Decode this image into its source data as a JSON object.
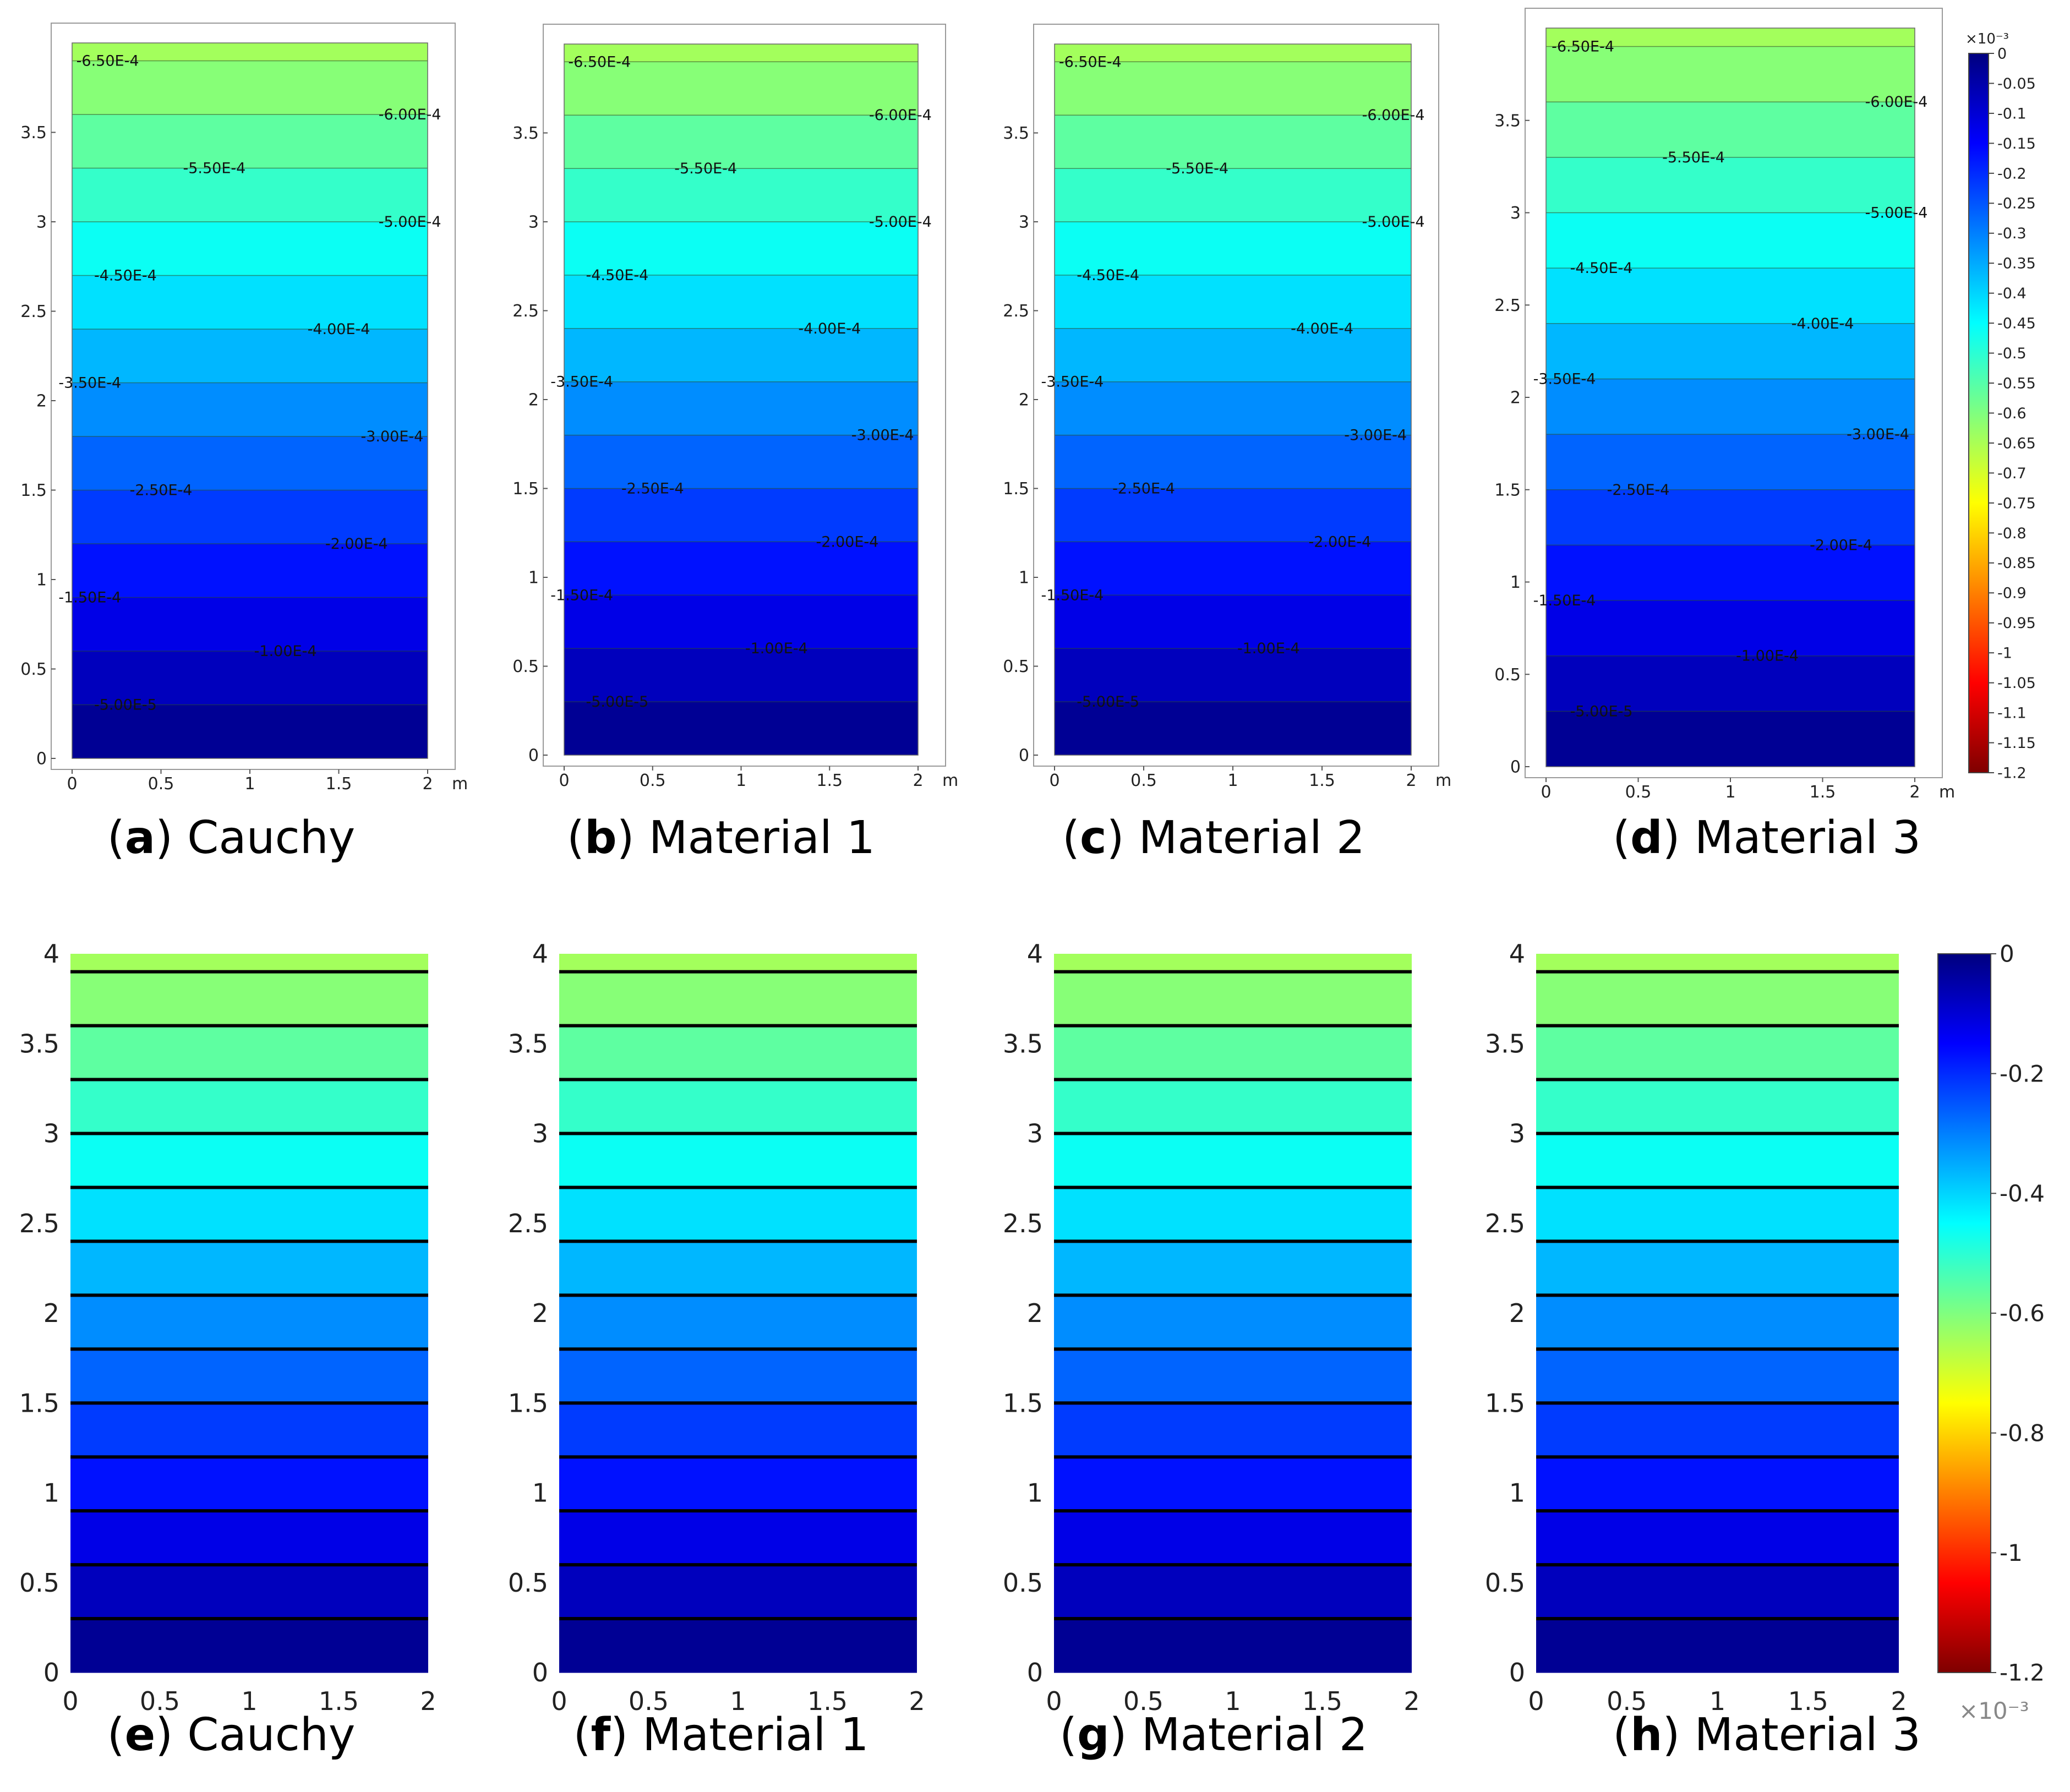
{
  "colormap": [
    "#7f0000",
    "#ff0000",
    "#ff7f00",
    "#ffff00",
    "#7fff7f",
    "#00ffff",
    "#007fff",
    "#0000ff",
    "#00007f"
  ],
  "chart_data": [
    {
      "id": "a",
      "type": "heatmap",
      "style": "comsol",
      "caption_letter": "a",
      "caption_text": ") Cauchy",
      "xticks": [
        "0",
        "0.5",
        "1",
        "1.5",
        "2"
      ],
      "yticks": [
        "0",
        "0.5",
        "1",
        "1.5",
        "2",
        "2.5",
        "3",
        "3.5"
      ],
      "unit": "m",
      "xlim": [
        0,
        2
      ],
      "ylim": [
        0,
        4
      ],
      "field_min": -0.00065,
      "field_max": 0,
      "contour_levels": [
        0.3,
        0.6,
        0.9,
        1.2,
        1.5,
        1.8,
        2.1,
        2.4,
        2.7,
        3.0,
        3.3,
        3.6,
        3.9
      ],
      "contour_labels": [
        {
          "text": "-6.50E-4",
          "x": 0.2,
          "y": 3.9
        },
        {
          "text": "-6.00E-4",
          "x": 1.9,
          "y": 3.6
        },
        {
          "text": "-5.50E-4",
          "x": 0.8,
          "y": 3.3
        },
        {
          "text": "-5.00E-4",
          "x": 1.9,
          "y": 3.0
        },
        {
          "text": "-4.50E-4",
          "x": 0.3,
          "y": 2.7
        },
        {
          "text": "-4.00E-4",
          "x": 1.5,
          "y": 2.4
        },
        {
          "text": "-3.50E-4",
          "x": 0.1,
          "y": 2.1
        },
        {
          "text": "-3.00E-4",
          "x": 1.8,
          "y": 1.8
        },
        {
          "text": "-2.50E-4",
          "x": 0.5,
          "y": 1.5
        },
        {
          "text": "-2.00E-4",
          "x": 1.6,
          "y": 1.2
        },
        {
          "text": "-1.50E-4",
          "x": 0.1,
          "y": 0.9
        },
        {
          "text": "-1.00E-4",
          "x": 1.2,
          "y": 0.6
        },
        {
          "text": "-5.00E-5",
          "x": 0.3,
          "y": 0.3
        }
      ]
    },
    {
      "id": "b",
      "type": "heatmap",
      "style": "comsol",
      "caption_letter": "b",
      "caption_text": ") Material 1",
      "xticks": [
        "0",
        "0.5",
        "1",
        "1.5",
        "2"
      ],
      "yticks": [
        "0",
        "0.5",
        "1",
        "1.5",
        "2",
        "2.5",
        "3",
        "3.5"
      ],
      "unit": "m",
      "xlim": [
        0,
        2
      ],
      "ylim": [
        0,
        4
      ],
      "field_min": -0.00065,
      "field_max": 0,
      "contour_levels": [
        0.3,
        0.6,
        0.9,
        1.2,
        1.5,
        1.8,
        2.1,
        2.4,
        2.7,
        3.0,
        3.3,
        3.6,
        3.9
      ],
      "contour_labels": [
        {
          "text": "-6.50E-4",
          "x": 0.2,
          "y": 3.9
        },
        {
          "text": "-6.00E-4",
          "x": 1.9,
          "y": 3.6
        },
        {
          "text": "-5.50E-4",
          "x": 0.8,
          "y": 3.3
        },
        {
          "text": "-5.00E-4",
          "x": 1.9,
          "y": 3.0
        },
        {
          "text": "-4.50E-4",
          "x": 0.3,
          "y": 2.7
        },
        {
          "text": "-4.00E-4",
          "x": 1.5,
          "y": 2.4
        },
        {
          "text": "-3.50E-4",
          "x": 0.1,
          "y": 2.1
        },
        {
          "text": "-3.00E-4",
          "x": 1.8,
          "y": 1.8
        },
        {
          "text": "-2.50E-4",
          "x": 0.5,
          "y": 1.5
        },
        {
          "text": "-2.00E-4",
          "x": 1.6,
          "y": 1.2
        },
        {
          "text": "-1.50E-4",
          "x": 0.1,
          "y": 0.9
        },
        {
          "text": "-1.00E-4",
          "x": 1.2,
          "y": 0.6
        },
        {
          "text": "-5.00E-5",
          "x": 0.3,
          "y": 0.3
        }
      ]
    },
    {
      "id": "c",
      "type": "heatmap",
      "style": "comsol",
      "caption_letter": "c",
      "caption_text": ") Material 2",
      "xticks": [
        "0",
        "0.5",
        "1",
        "1.5",
        "2"
      ],
      "yticks": [
        "0",
        "0.5",
        "1",
        "1.5",
        "2",
        "2.5",
        "3",
        "3.5"
      ],
      "unit": "m",
      "xlim": [
        0,
        2
      ],
      "ylim": [
        0,
        4
      ],
      "field_min": -0.00065,
      "field_max": 0,
      "contour_levels": [
        0.3,
        0.6,
        0.9,
        1.2,
        1.5,
        1.8,
        2.1,
        2.4,
        2.7,
        3.0,
        3.3,
        3.6,
        3.9
      ],
      "contour_labels": [
        {
          "text": "-6.50E-4",
          "x": 0.2,
          "y": 3.9
        },
        {
          "text": "-6.00E-4",
          "x": 1.9,
          "y": 3.6
        },
        {
          "text": "-5.50E-4",
          "x": 0.8,
          "y": 3.3
        },
        {
          "text": "-5.00E-4",
          "x": 1.9,
          "y": 3.0
        },
        {
          "text": "-4.50E-4",
          "x": 0.3,
          "y": 2.7
        },
        {
          "text": "-4.00E-4",
          "x": 1.5,
          "y": 2.4
        },
        {
          "text": "-3.50E-4",
          "x": 0.1,
          "y": 2.1
        },
        {
          "text": "-3.00E-4",
          "x": 1.8,
          "y": 1.8
        },
        {
          "text": "-2.50E-4",
          "x": 0.5,
          "y": 1.5
        },
        {
          "text": "-2.00E-4",
          "x": 1.6,
          "y": 1.2
        },
        {
          "text": "-1.50E-4",
          "x": 0.1,
          "y": 0.9
        },
        {
          "text": "-1.00E-4",
          "x": 1.2,
          "y": 0.6
        },
        {
          "text": "-5.00E-5",
          "x": 0.3,
          "y": 0.3
        }
      ]
    },
    {
      "id": "d",
      "type": "heatmap",
      "style": "comsol",
      "caption_letter": "d",
      "caption_text": ") Material 3",
      "xticks": [
        "0",
        "0.5",
        "1",
        "1.5",
        "2"
      ],
      "yticks": [
        "0",
        "0.5",
        "1",
        "1.5",
        "2",
        "2.5",
        "3",
        "3.5"
      ],
      "unit": "m",
      "xlim": [
        0,
        2
      ],
      "ylim": [
        0,
        4
      ],
      "field_min": -0.00065,
      "field_max": 0,
      "contour_levels": [
        0.3,
        0.6,
        0.9,
        1.2,
        1.5,
        1.8,
        2.1,
        2.4,
        2.7,
        3.0,
        3.3,
        3.6,
        3.9
      ],
      "contour_labels": [
        {
          "text": "-6.50E-4",
          "x": 0.2,
          "y": 3.9
        },
        {
          "text": "-6.00E-4",
          "x": 1.9,
          "y": 3.6
        },
        {
          "text": "-5.50E-4",
          "x": 0.8,
          "y": 3.3
        },
        {
          "text": "-5.00E-4",
          "x": 1.9,
          "y": 3.0
        },
        {
          "text": "-4.50E-4",
          "x": 0.3,
          "y": 2.7
        },
        {
          "text": "-4.00E-4",
          "x": 1.5,
          "y": 2.4
        },
        {
          "text": "-3.50E-4",
          "x": 0.1,
          "y": 2.1
        },
        {
          "text": "-3.00E-4",
          "x": 1.8,
          "y": 1.8
        },
        {
          "text": "-2.50E-4",
          "x": 0.5,
          "y": 1.5
        },
        {
          "text": "-2.00E-4",
          "x": 1.6,
          "y": 1.2
        },
        {
          "text": "-1.50E-4",
          "x": 0.1,
          "y": 0.9
        },
        {
          "text": "-1.00E-4",
          "x": 1.2,
          "y": 0.6
        },
        {
          "text": "-5.00E-5",
          "x": 0.3,
          "y": 0.3
        }
      ],
      "colorbar": {
        "exponent": "×10⁻³",
        "range": [
          -1.2,
          0
        ],
        "ticks": [
          "0",
          "-0.05",
          "-0.1",
          "-0.15",
          "-0.2",
          "-0.25",
          "-0.3",
          "-0.35",
          "-0.4",
          "-0.45",
          "-0.5",
          "-0.55",
          "-0.6",
          "-0.65",
          "-0.7",
          "-0.75",
          "-0.8",
          "-0.85",
          "-0.9",
          "-0.95",
          "-1",
          "-1.05",
          "-1.1",
          "-1.15",
          "-1.2"
        ]
      }
    },
    {
      "id": "e",
      "type": "heatmap",
      "style": "matlab",
      "caption_letter": "e",
      "caption_text": ") Cauchy",
      "xticks": [
        "0",
        "0.5",
        "1",
        "1.5",
        "2"
      ],
      "yticks": [
        "0",
        "0.5",
        "1",
        "1.5",
        "2",
        "2.5",
        "3",
        "3.5",
        "4"
      ],
      "xlim": [
        0,
        2
      ],
      "ylim": [
        0,
        4
      ],
      "field_min": -0.00065,
      "field_max": 0,
      "contour_levels": [
        0.3,
        0.6,
        0.9,
        1.2,
        1.5,
        1.8,
        2.1,
        2.4,
        2.7,
        3.0,
        3.3,
        3.6,
        3.9
      ]
    },
    {
      "id": "f",
      "type": "heatmap",
      "style": "matlab",
      "caption_letter": "f",
      "caption_text": ") Material 1",
      "xticks": [
        "0",
        "0.5",
        "1",
        "1.5",
        "2"
      ],
      "yticks": [
        "0",
        "0.5",
        "1",
        "1.5",
        "2",
        "2.5",
        "3",
        "3.5",
        "4"
      ],
      "xlim": [
        0,
        2
      ],
      "ylim": [
        0,
        4
      ],
      "field_min": -0.00065,
      "field_max": 0,
      "contour_levels": [
        0.3,
        0.6,
        0.9,
        1.2,
        1.5,
        1.8,
        2.1,
        2.4,
        2.7,
        3.0,
        3.3,
        3.6,
        3.9
      ]
    },
    {
      "id": "g",
      "type": "heatmap",
      "style": "matlab",
      "caption_letter": "g",
      "caption_text": ") Material 2",
      "xticks": [
        "0",
        "0.5",
        "1",
        "1.5",
        "2"
      ],
      "yticks": [
        "0",
        "0.5",
        "1",
        "1.5",
        "2",
        "2.5",
        "3",
        "3.5",
        "4"
      ],
      "xlim": [
        0,
        2
      ],
      "ylim": [
        0,
        4
      ],
      "field_min": -0.00065,
      "field_max": 0,
      "contour_levels": [
        0.3,
        0.6,
        0.9,
        1.2,
        1.5,
        1.8,
        2.1,
        2.4,
        2.7,
        3.0,
        3.3,
        3.6,
        3.9
      ]
    },
    {
      "id": "h",
      "type": "heatmap",
      "style": "matlab",
      "caption_letter": "h",
      "caption_text": ") Material 3",
      "xticks": [
        "0",
        "0.5",
        "1",
        "1.5",
        "2"
      ],
      "yticks": [
        "0",
        "0.5",
        "1",
        "1.5",
        "2",
        "2.5",
        "3",
        "3.5",
        "4"
      ],
      "xlim": [
        0,
        2
      ],
      "ylim": [
        0,
        4
      ],
      "field_min": -0.00065,
      "field_max": 0,
      "contour_levels": [
        0.3,
        0.6,
        0.9,
        1.2,
        1.5,
        1.8,
        2.1,
        2.4,
        2.7,
        3.0,
        3.3,
        3.6,
        3.9
      ],
      "colorbar": {
        "exponent": "×10⁻³",
        "range": [
          -1.2,
          0
        ],
        "ticks": [
          "0",
          "-0.2",
          "-0.4",
          "-0.6",
          "-0.8",
          "-1",
          "-1.2"
        ]
      }
    }
  ]
}
